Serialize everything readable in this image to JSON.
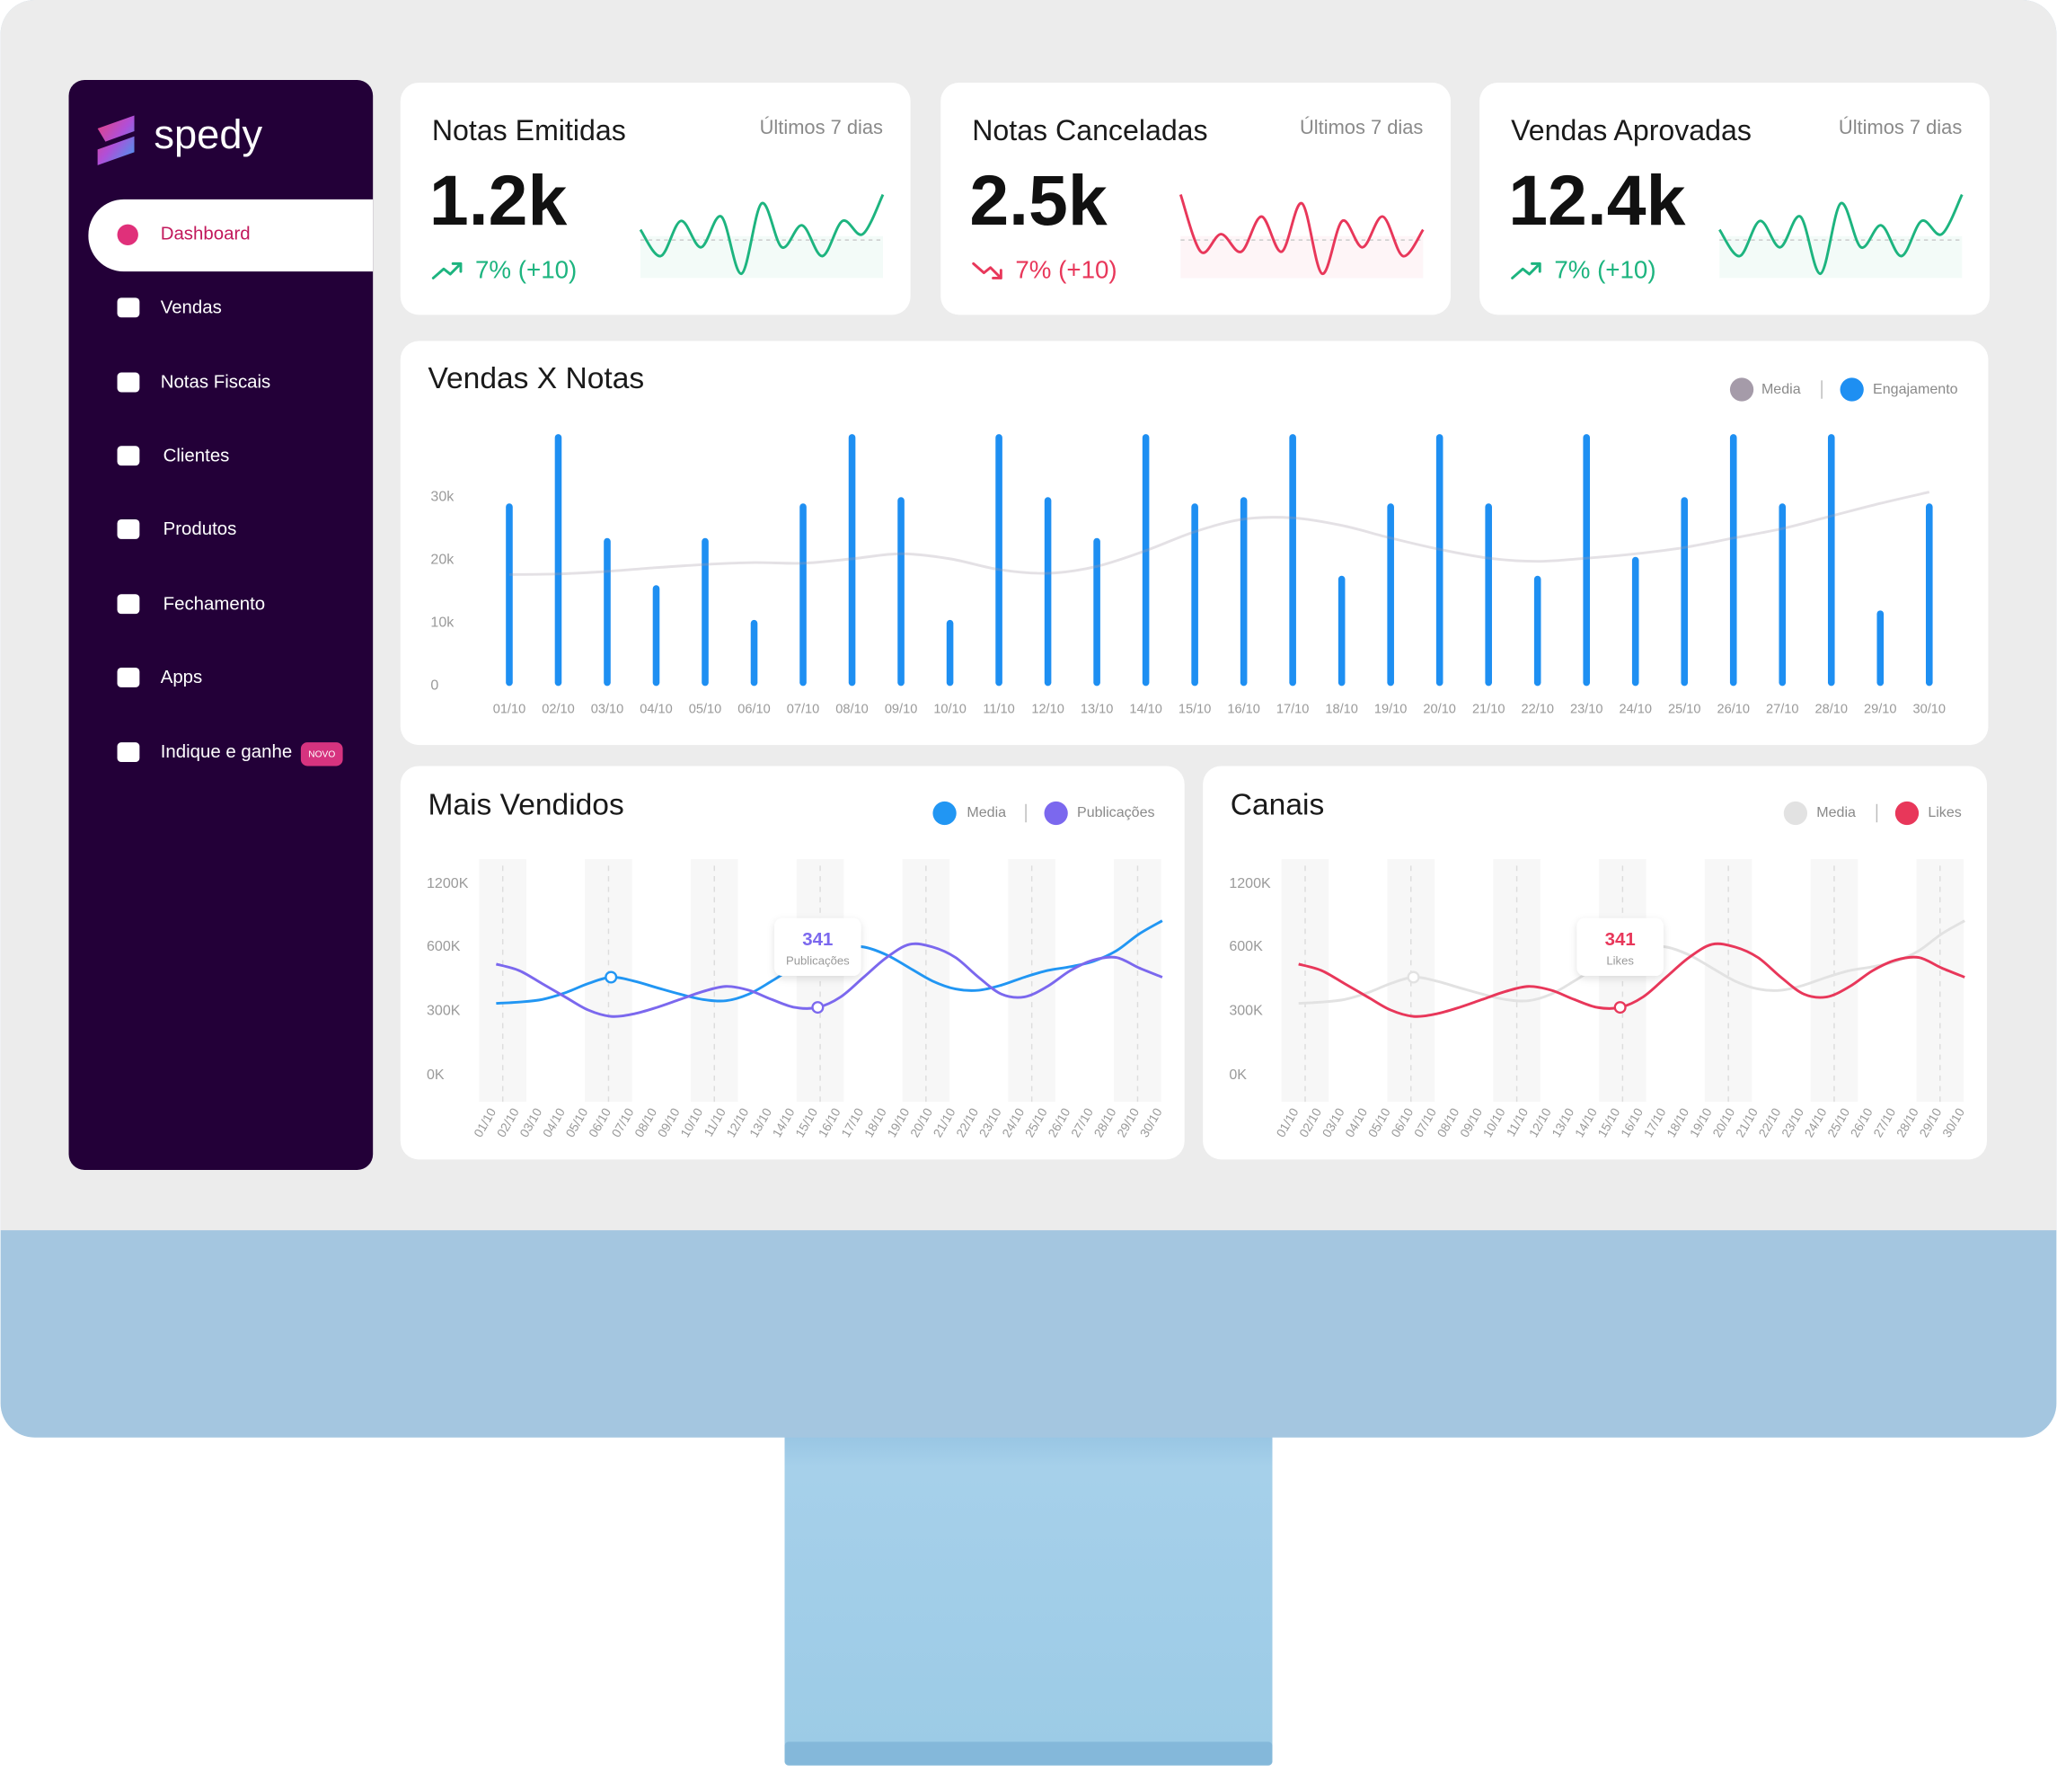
{
  "sidebar": {
    "brand": "spedy",
    "menu": [
      "Dashboard",
      "Vendas",
      "Notas Fiscais",
      "Clientes",
      "Produtos",
      "Fechamento",
      "Apps",
      "Indique e ganhe"
    ],
    "badge": "NOVO"
  },
  "cards": [
    {
      "title": "Notas Emitidas",
      "period": "Últimos 7 dias",
      "value": "1.2k",
      "change": "7% (+10)",
      "trend": "up",
      "color": "#1db47f",
      "sparkline": [
        5.5,
        2.5,
        6.5,
        3.5,
        7,
        0.5,
        8.5,
        3.5,
        6,
        2.5,
        6.5,
        5,
        9.5
      ],
      "ylim": [
        0,
        10
      ]
    },
    {
      "title": "Notas Canceladas",
      "period": "Últimos 7 dias",
      "value": "2.5k",
      "change": "7% (+10)",
      "trend": "down",
      "color": "#e8375a",
      "sparkline": [
        9.5,
        3,
        5,
        3,
        7,
        3,
        8.5,
        0.5,
        6.5,
        3.5,
        7,
        2.5,
        5.5
      ],
      "ylim": [
        0,
        10
      ]
    },
    {
      "title": "Vendas Aprovadas",
      "period": "Últimos 7 dias",
      "value": "12.4k",
      "change": "7% (+10)",
      "trend": "up",
      "color": "#1db47f",
      "sparkline": [
        5.5,
        2.5,
        6.5,
        3.5,
        7,
        0.5,
        8.5,
        3.5,
        6,
        2.5,
        6.5,
        5,
        9.5
      ],
      "ylim": [
        0,
        10
      ]
    }
  ],
  "charts": [
    {
      "type": "bar",
      "title": "Vendas X Notas",
      "categories": [
        "01/10",
        "02/10",
        "03/10",
        "04/10",
        "05/10",
        "06/10",
        "07/10",
        "08/10",
        "09/10",
        "10/10",
        "11/10",
        "12/10",
        "13/10",
        "14/10",
        "15/10",
        "16/10",
        "17/10",
        "18/10",
        "19/10",
        "20/10",
        "21/10",
        "22/10",
        "23/10",
        "24/10",
        "25/10",
        "26/10",
        "27/10",
        "28/10",
        "29/10",
        "30/10"
      ],
      "series": [
        {
          "name": "Media",
          "type": "line",
          "color": "#a59ba9",
          "values": [
            17700,
            17800,
            18200,
            18800,
            19300,
            19600,
            19500,
            20200,
            21000,
            20200,
            18500,
            17900,
            19000,
            21500,
            24500,
            26500,
            26700,
            25500,
            23500,
            21700,
            20300,
            19800,
            20300,
            21000,
            22000,
            23500,
            25000,
            27000,
            29000,
            30800
          ]
        },
        {
          "name": "Engajamento",
          "type": "bar",
          "color": "#1e8ff2",
          "values": [
            29000,
            40000,
            23500,
            16000,
            23500,
            10500,
            29000,
            40000,
            30000,
            10500,
            40000,
            30000,
            23500,
            40000,
            29000,
            30000,
            40000,
            17500,
            29000,
            40000,
            29000,
            17500,
            40000,
            20500,
            30000,
            40000,
            29000,
            40000,
            12000,
            29000
          ]
        }
      ],
      "ylim": [
        0,
        40000
      ],
      "yticks": [
        0,
        {
          "value": 10000,
          "label": "10k"
        },
        {
          "value": 20000,
          "label": "20k"
        },
        {
          "value": 30000,
          "label": "30k"
        }
      ]
    },
    {
      "type": "line",
      "title": "Mais Vendidos",
      "categories": [
        "01/10",
        "02/10",
        "03/10",
        "04/10",
        "05/10",
        "06/10",
        "07/10",
        "08/10",
        "09/10",
        "10/10",
        "11/10",
        "12/10",
        "13/10",
        "14/10",
        "15/10",
        "16/10",
        "17/10",
        "18/10",
        "19/10",
        "20/10",
        "21/10",
        "22/10",
        "23/10",
        "24/10",
        "25/10",
        "26/10",
        "27/10",
        "28/10",
        "29/10",
        "30/10"
      ],
      "series": [
        {
          "name": "Media",
          "color": "#2196f3",
          "values": [
            337000,
            343000,
            355000,
            386000,
            429000,
            459000,
            441000,
            410000,
            380000,
            355000,
            349000,
            380000,
            441000,
            508000,
            569000,
            600000,
            600000,
            563000,
            502000,
            441000,
            404000,
            398000,
            422000,
            459000,
            490000,
            508000,
            533000,
            582000,
            725000,
            850000
          ]
        },
        {
          "name": "Publicações",
          "color": "#7b68ee",
          "values": [
            520000,
            490000,
            429000,
            367000,
            306000,
            276000,
            288000,
            318000,
            355000,
            392000,
            416000,
            398000,
            355000,
            318000,
            318000,
            367000,
            459000,
            551000,
            625000,
            600000,
            551000,
            459000,
            380000,
            367000,
            416000,
            490000,
            539000,
            551000,
            502000,
            459000
          ]
        }
      ],
      "annotation": {
        "label": "341",
        "caption": "Publicações"
      },
      "ylim": [
        0,
        1200000
      ],
      "yticks": [
        {
          "value": 0,
          "label": "0K"
        },
        {
          "value": 300000,
          "label": "300K"
        },
        {
          "value": 600000,
          "label": "600K"
        },
        {
          "value": 1200000,
          "label": "1200K"
        }
      ]
    },
    {
      "type": "line",
      "title": "Canais",
      "categories": [
        "01/10",
        "02/10",
        "03/10",
        "04/10",
        "05/10",
        "06/10",
        "07/10",
        "08/10",
        "09/10",
        "10/10",
        "11/10",
        "12/10",
        "13/10",
        "14/10",
        "15/10",
        "16/10",
        "17/10",
        "18/10",
        "19/10",
        "20/10",
        "21/10",
        "22/10",
        "23/10",
        "24/10",
        "25/10",
        "26/10",
        "27/10",
        "28/10",
        "29/10",
        "30/10"
      ],
      "series": [
        {
          "name": "Media",
          "color": "#e2e2e2",
          "values": [
            337000,
            343000,
            355000,
            386000,
            429000,
            459000,
            441000,
            410000,
            380000,
            355000,
            349000,
            380000,
            441000,
            508000,
            569000,
            600000,
            600000,
            563000,
            502000,
            441000,
            404000,
            398000,
            422000,
            459000,
            490000,
            508000,
            533000,
            582000,
            725000,
            850000
          ]
        },
        {
          "name": "Likes",
          "color": "#e8375a",
          "values": [
            520000,
            490000,
            429000,
            367000,
            306000,
            276000,
            288000,
            318000,
            355000,
            392000,
            416000,
            398000,
            355000,
            318000,
            318000,
            367000,
            459000,
            551000,
            625000,
            600000,
            551000,
            459000,
            380000,
            367000,
            416000,
            490000,
            539000,
            551000,
            502000,
            459000
          ]
        }
      ],
      "annotation": {
        "label": "341",
        "caption": "Likes"
      },
      "ylim": [
        0,
        1200000
      ],
      "yticks": [
        {
          "value": 0,
          "label": "0K"
        },
        {
          "value": 300000,
          "label": "300K"
        },
        {
          "value": 600000,
          "label": "600K"
        },
        {
          "value": 1200000,
          "label": "1200K"
        }
      ]
    }
  ]
}
